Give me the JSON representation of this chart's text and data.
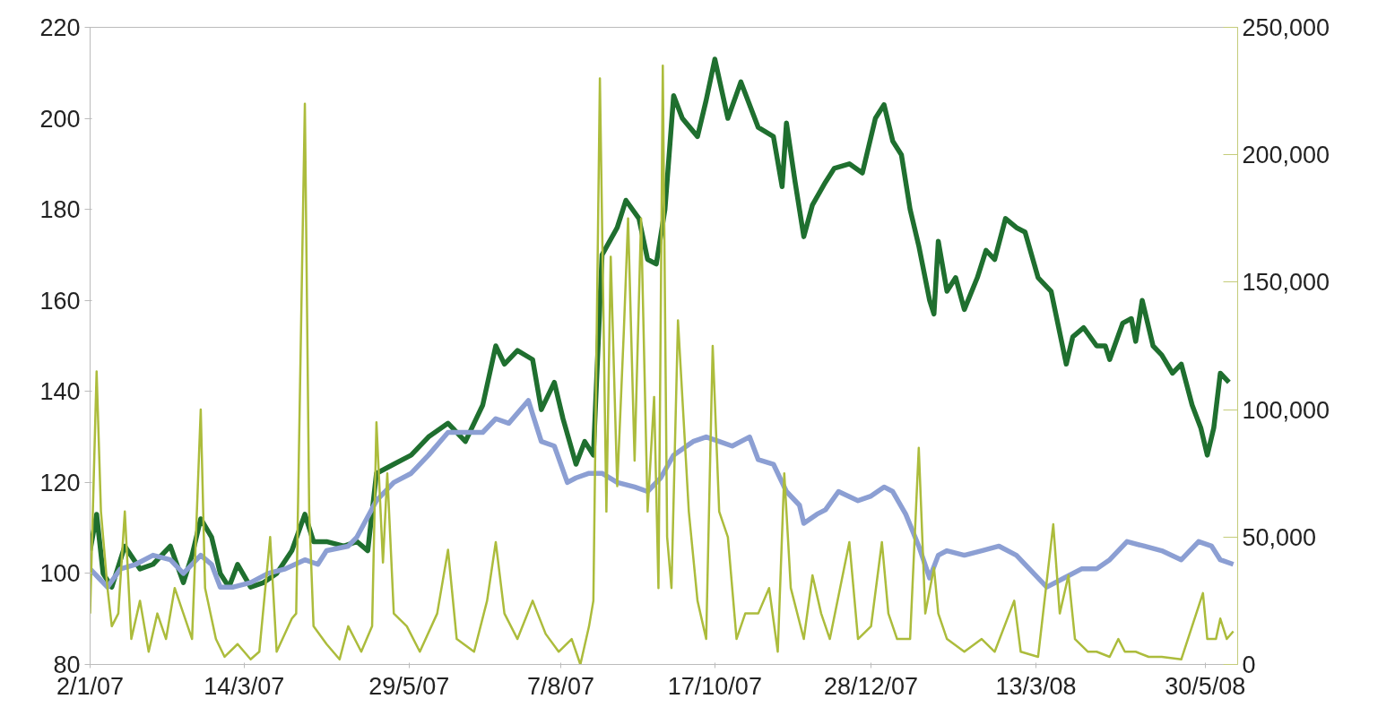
{
  "chart_data": {
    "type": "line",
    "xlim": [
      "2007-01-02",
      "2008-06-14"
    ],
    "xticks": [
      {
        "value": "2007-01-02",
        "label": "2/1/07"
      },
      {
        "value": "2007-03-14",
        "label": "14/3/07"
      },
      {
        "value": "2007-05-29",
        "label": "29/5/07"
      },
      {
        "value": "2007-08-07",
        "label": "7/8/07"
      },
      {
        "value": "2007-10-17",
        "label": "17/10/07"
      },
      {
        "value": "2007-12-28",
        "label": "28/12/07"
      },
      {
        "value": "2008-03-13",
        "label": "13/3/08"
      },
      {
        "value": "2008-05-30",
        "label": "30/5/08"
      }
    ],
    "ylim": [
      80,
      220
    ],
    "yticks": [
      80,
      100,
      120,
      140,
      160,
      180,
      200,
      220
    ],
    "y2lim": [
      0,
      250000
    ],
    "y2ticks": [
      {
        "value": 0,
        "label": "0"
      },
      {
        "value": 50000,
        "label": "50,000"
      },
      {
        "value": 100000,
        "label": "100,000"
      },
      {
        "value": 150000,
        "label": "150,000"
      },
      {
        "value": 200000,
        "label": "200,000"
      },
      {
        "value": 250000,
        "label": "250,000"
      }
    ],
    "grid": false,
    "marker": "none",
    "line_style": "solid",
    "series": [
      {
        "color": "#acbc3c",
        "axis": "y2",
        "x": [
          "2007-01-02",
          "2007-01-05",
          "2007-01-07",
          "2007-01-10",
          "2007-01-12",
          "2007-01-15",
          "2007-01-18",
          "2007-01-21",
          "2007-01-25",
          "2007-01-29",
          "2007-02-02",
          "2007-02-06",
          "2007-02-10",
          "2007-02-14",
          "2007-02-18",
          "2007-02-22",
          "2007-02-24",
          "2007-03-01",
          "2007-03-05",
          "2007-03-11",
          "2007-03-17",
          "2007-03-21",
          "2007-03-26",
          "2007-03-29",
          "2007-04-05",
          "2007-04-07",
          "2007-04-11",
          "2007-04-13",
          "2007-04-15",
          "2007-04-21",
          "2007-04-27",
          "2007-05-01",
          "2007-05-07",
          "2007-05-12",
          "2007-05-14",
          "2007-05-17",
          "2007-05-19",
          "2007-05-22",
          "2007-05-28",
          "2007-06-03",
          "2007-06-11",
          "2007-06-16",
          "2007-06-20",
          "2007-06-28",
          "2007-07-04",
          "2007-07-08",
          "2007-07-12",
          "2007-07-18",
          "2007-07-25",
          "2007-07-31",
          "2007-08-06",
          "2007-08-12",
          "2007-08-16",
          "2007-08-20",
          "2007-08-22",
          "2007-08-25",
          "2007-08-28",
          "2007-08-30",
          "2007-09-02",
          "2007-09-05",
          "2007-09-07",
          "2007-09-10",
          "2007-09-13",
          "2007-09-16",
          "2007-09-19",
          "2007-09-21",
          "2007-09-23",
          "2007-09-25",
          "2007-09-27",
          "2007-09-30",
          "2007-10-05",
          "2007-10-09",
          "2007-10-13",
          "2007-10-16",
          "2007-10-19",
          "2007-10-23",
          "2007-10-27",
          "2007-10-31",
          "2007-11-06",
          "2007-11-11",
          "2007-11-15",
          "2007-11-18",
          "2007-11-21",
          "2007-11-27",
          "2007-12-01",
          "2007-12-05",
          "2007-12-09",
          "2007-12-18",
          "2007-12-22",
          "2007-12-28",
          "2008-01-02",
          "2008-01-05",
          "2008-01-09",
          "2008-01-15",
          "2008-01-19",
          "2008-01-22",
          "2008-01-26",
          "2008-01-28",
          "2008-02-01",
          "2008-02-09",
          "2008-02-17",
          "2008-02-23",
          "2008-03-03",
          "2008-03-06",
          "2008-03-14",
          "2008-03-21",
          "2008-03-24",
          "2008-03-28",
          "2008-03-31",
          "2008-04-06",
          "2008-04-10",
          "2008-04-16",
          "2008-04-20",
          "2008-04-23",
          "2008-04-28",
          "2008-05-04",
          "2008-05-10",
          "2008-05-19",
          "2008-05-29",
          "2008-05-31",
          "2008-06-04",
          "2008-06-06",
          "2008-06-09",
          "2008-06-12"
        ],
        "values": [
          20000,
          115000,
          60000,
          30000,
          15000,
          20000,
          60000,
          10000,
          25000,
          5000,
          20000,
          10000,
          30000,
          20000,
          10000,
          100000,
          30000,
          10000,
          3000,
          8000,
          2000,
          5000,
          50000,
          5000,
          18000,
          20000,
          220000,
          60000,
          15000,
          8000,
          2000,
          15000,
          5000,
          15000,
          95000,
          40000,
          75000,
          20000,
          15000,
          5000,
          20000,
          45000,
          10000,
          5000,
          25000,
          48000,
          20000,
          10000,
          25000,
          12000,
          5000,
          10000,
          0,
          15000,
          25000,
          230000,
          60000,
          160000,
          70000,
          130000,
          175000,
          80000,
          175000,
          60000,
          105000,
          30000,
          235000,
          50000,
          30000,
          135000,
          60000,
          25000,
          10000,
          125000,
          60000,
          50000,
          10000,
          20000,
          20000,
          30000,
          5000,
          75000,
          30000,
          10000,
          35000,
          20000,
          10000,
          48000,
          10000,
          15000,
          48000,
          20000,
          10000,
          10000,
          85000,
          20000,
          38000,
          20000,
          10000,
          5000,
          10000,
          5000,
          25000,
          5000,
          3000,
          55000,
          20000,
          35000,
          10000,
          5000,
          5000,
          3000,
          10000,
          5000,
          5000,
          3000,
          3000,
          2000,
          28000,
          10000,
          10000,
          18000,
          10000,
          13000
        ]
      },
      {
        "color": "#8c9fd3",
        "x": [
          "2007-01-02",
          "2007-01-06",
          "2007-01-10",
          "2007-01-16",
          "2007-01-23",
          "2007-01-31",
          "2007-02-08",
          "2007-02-14",
          "2007-02-22",
          "2007-02-27",
          "2007-03-03",
          "2007-03-09",
          "2007-03-17",
          "2007-03-25",
          "2007-04-02",
          "2007-04-11",
          "2007-04-17",
          "2007-04-21",
          "2007-05-01",
          "2007-05-05",
          "2007-05-14",
          "2007-05-22",
          "2007-05-30",
          "2007-06-07",
          "2007-06-16",
          "2007-06-24",
          "2007-07-02",
          "2007-07-08",
          "2007-07-14",
          "2007-07-23",
          "2007-07-29",
          "2007-08-04",
          "2007-08-10",
          "2007-08-14",
          "2007-08-20",
          "2007-08-26",
          "2007-09-02",
          "2007-09-10",
          "2007-09-16",
          "2007-09-22",
          "2007-09-28",
          "2007-10-07",
          "2007-10-13",
          "2007-10-19",
          "2007-10-25",
          "2007-11-02",
          "2007-11-06",
          "2007-11-13",
          "2007-11-19",
          "2007-11-25",
          "2007-11-27",
          "2007-12-03",
          "2007-12-07",
          "2007-12-13",
          "2007-12-22",
          "2007-12-28",
          "2008-01-03",
          "2008-01-07",
          "2008-01-13",
          "2008-01-19",
          "2008-01-24",
          "2008-01-28",
          "2008-02-01",
          "2008-02-09",
          "2008-02-17",
          "2008-02-25",
          "2008-03-04",
          "2008-03-10",
          "2008-03-18",
          "2008-03-26",
          "2008-04-03",
          "2008-04-10",
          "2008-04-16",
          "2008-04-24",
          "2008-05-02",
          "2008-05-10",
          "2008-05-19",
          "2008-05-27",
          "2008-06-02",
          "2008-06-06",
          "2008-06-12"
        ],
        "values": [
          101,
          99,
          97,
          101,
          102,
          104,
          103,
          100,
          104,
          102,
          97,
          97,
          98,
          100,
          101,
          103,
          102,
          105,
          106,
          108,
          116,
          120,
          122,
          126,
          131,
          131,
          131,
          134,
          133,
          138,
          129,
          128,
          120,
          121,
          122,
          122,
          120,
          119,
          118,
          121,
          126,
          129,
          130,
          129,
          128,
          130,
          125,
          124,
          118,
          115,
          111,
          113,
          114,
          118,
          116,
          117,
          119,
          118,
          113,
          106,
          99,
          104,
          105,
          104,
          105,
          106,
          104,
          101,
          97,
          99,
          101,
          101,
          103,
          107,
          106,
          105,
          103,
          107,
          106,
          103,
          102
        ]
      },
      {
        "color": "#1f6f2f",
        "x": [
          "2007-01-02",
          "2007-01-05",
          "2007-01-08",
          "2007-01-12",
          "2007-01-18",
          "2007-01-25",
          "2007-01-31",
          "2007-02-08",
          "2007-02-14",
          "2007-02-18",
          "2007-02-22",
          "2007-02-27",
          "2007-03-03",
          "2007-03-07",
          "2007-03-11",
          "2007-03-17",
          "2007-03-23",
          "2007-03-29",
          "2007-04-05",
          "2007-04-11",
          "2007-04-15",
          "2007-04-21",
          "2007-04-29",
          "2007-05-05",
          "2007-05-10",
          "2007-05-14",
          "2007-05-22",
          "2007-05-30",
          "2007-06-07",
          "2007-06-16",
          "2007-06-24",
          "2007-07-02",
          "2007-07-08",
          "2007-07-12",
          "2007-07-18",
          "2007-07-25",
          "2007-07-29",
          "2007-08-04",
          "2007-08-08",
          "2007-08-14",
          "2007-08-18",
          "2007-08-22",
          "2007-08-26",
          "2007-09-02",
          "2007-09-06",
          "2007-09-12",
          "2007-09-16",
          "2007-09-20",
          "2007-09-24",
          "2007-09-28",
          "2007-10-02",
          "2007-10-09",
          "2007-10-13",
          "2007-10-17",
          "2007-10-23",
          "2007-10-29",
          "2007-11-06",
          "2007-11-13",
          "2007-11-17",
          "2007-11-19",
          "2007-11-23",
          "2007-11-27",
          "2007-12-01",
          "2007-12-07",
          "2007-12-11",
          "2007-12-18",
          "2007-12-24",
          "2007-12-30",
          "2008-01-03",
          "2008-01-07",
          "2008-01-11",
          "2008-01-15",
          "2008-01-19",
          "2008-01-24",
          "2008-01-26",
          "2008-01-28",
          "2008-02-01",
          "2008-02-05",
          "2008-02-09",
          "2008-02-15",
          "2008-02-19",
          "2008-02-23",
          "2008-02-28",
          "2008-03-04",
          "2008-03-08",
          "2008-03-14",
          "2008-03-20",
          "2008-03-27",
          "2008-03-30",
          "2008-04-04",
          "2008-04-10",
          "2008-04-14",
          "2008-04-16",
          "2008-04-22",
          "2008-04-26",
          "2008-04-28",
          "2008-05-01",
          "2008-05-06",
          "2008-05-10",
          "2008-05-15",
          "2008-05-19",
          "2008-05-24",
          "2008-05-28",
          "2008-05-31",
          "2008-06-03",
          "2008-06-06",
          "2008-06-10"
        ],
        "values": [
          105,
          113,
          100,
          97,
          106,
          101,
          102,
          106,
          98,
          104,
          112,
          108,
          100,
          97,
          102,
          97,
          98,
          100,
          105,
          113,
          107,
          107,
          106,
          107,
          105,
          122,
          124,
          126,
          130,
          133,
          129,
          137,
          150,
          146,
          149,
          147,
          136,
          142,
          134,
          124,
          129,
          126,
          170,
          176,
          182,
          178,
          169,
          168,
          180,
          205,
          200,
          196,
          204,
          213,
          200,
          208,
          198,
          196,
          185,
          199,
          186,
          174,
          181,
          186,
          189,
          190,
          188,
          200,
          203,
          195,
          192,
          180,
          172,
          160,
          157,
          173,
          162,
          165,
          158,
          165,
          171,
          169,
          178,
          176,
          175,
          165,
          162,
          146,
          152,
          154,
          150,
          150,
          147,
          155,
          156,
          151,
          160,
          150,
          148,
          144,
          146,
          137,
          132,
          126,
          132,
          144,
          142
        ]
      }
    ]
  }
}
